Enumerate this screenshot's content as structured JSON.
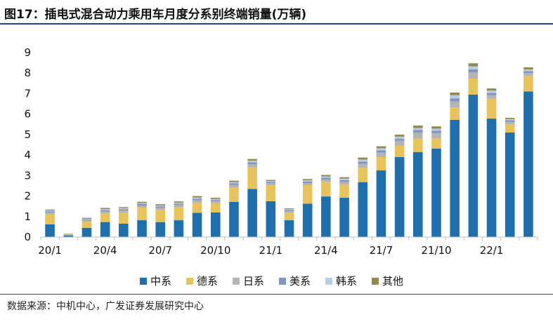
{
  "header": {
    "title": "图17：插电式混合动力乘用车月度分系别终端销量(万辆)"
  },
  "footer": {
    "source": "数据来源：中机中心，广发证券发展研究中心"
  },
  "colors": {
    "中系": "#1f6fad",
    "德系": "#e8c25a",
    "日系": "#b4b4b4",
    "美系": "#7f95c4",
    "韩系": "#b8cce4",
    "其他": "#938a52",
    "axis": "#bfbfbf",
    "title_rule": "#1e4a82"
  },
  "chart_data": {
    "type": "bar",
    "stacked": true,
    "categories": [
      "20/1",
      "20/2",
      "20/3",
      "20/4",
      "20/5",
      "20/6",
      "20/7",
      "20/8",
      "20/9",
      "20/10",
      "20/11",
      "20/12",
      "21/1",
      "21/2",
      "21/3",
      "21/4",
      "21/5",
      "21/6",
      "21/7",
      "21/8",
      "21/9",
      "21/10",
      "21/11",
      "21/12",
      "22/1",
      "22/2",
      "22/3"
    ],
    "xtick_labels": [
      "20/1",
      "20/4",
      "20/7",
      "20/10",
      "21/1",
      "21/4",
      "21/7",
      "21/10",
      "22/1"
    ],
    "xtick_indices": [
      0,
      3,
      6,
      9,
      12,
      15,
      18,
      21,
      24
    ],
    "ylim": [
      0,
      9
    ],
    "yticks": [
      0,
      1,
      2,
      3,
      4,
      5,
      6,
      7,
      8,
      9
    ],
    "grid": false,
    "legend_position": "bottom",
    "series": [
      {
        "name": "中系",
        "values": [
          0.62,
          0.08,
          0.45,
          0.73,
          0.65,
          0.82,
          0.73,
          0.82,
          1.18,
          1.2,
          1.72,
          2.35,
          1.75,
          0.82,
          1.63,
          1.98,
          1.92,
          2.68,
          3.25,
          3.9,
          4.15,
          4.32,
          5.72,
          6.95,
          5.78,
          5.1,
          7.1
        ]
      },
      {
        "name": "德系",
        "values": [
          0.48,
          0.04,
          0.3,
          0.42,
          0.55,
          0.62,
          0.6,
          0.65,
          0.5,
          0.45,
          0.7,
          1.05,
          0.78,
          0.38,
          0.9,
          0.7,
          0.65,
          0.7,
          0.65,
          0.55,
          0.65,
          0.5,
          0.6,
          0.78,
          0.95,
          0.4,
          0.75
        ]
      },
      {
        "name": "日系",
        "values": [
          0.1,
          0.02,
          0.08,
          0.1,
          0.1,
          0.1,
          0.1,
          0.1,
          0.12,
          0.1,
          0.12,
          0.15,
          0.1,
          0.07,
          0.1,
          0.12,
          0.12,
          0.2,
          0.22,
          0.25,
          0.3,
          0.25,
          0.3,
          0.3,
          0.2,
          0.12,
          0.15
        ]
      },
      {
        "name": "美系",
        "values": [
          0.05,
          0.01,
          0.04,
          0.06,
          0.06,
          0.07,
          0.06,
          0.06,
          0.07,
          0.06,
          0.08,
          0.1,
          0.06,
          0.05,
          0.08,
          0.09,
          0.09,
          0.1,
          0.11,
          0.1,
          0.12,
          0.12,
          0.15,
          0.15,
          0.1,
          0.08,
          0.1
        ]
      },
      {
        "name": "韩系",
        "values": [
          0.05,
          0.01,
          0.03,
          0.05,
          0.05,
          0.05,
          0.05,
          0.05,
          0.06,
          0.05,
          0.06,
          0.08,
          0.05,
          0.04,
          0.06,
          0.07,
          0.07,
          0.1,
          0.1,
          0.1,
          0.1,
          0.1,
          0.15,
          0.15,
          0.12,
          0.06,
          0.08
        ]
      },
      {
        "name": "其他",
        "values": [
          0.04,
          0.01,
          0.04,
          0.06,
          0.05,
          0.06,
          0.06,
          0.06,
          0.07,
          0.06,
          0.07,
          0.08,
          0.05,
          0.04,
          0.06,
          0.07,
          0.07,
          0.1,
          0.1,
          0.1,
          0.12,
          0.11,
          0.13,
          0.15,
          0.1,
          0.06,
          0.1
        ]
      }
    ]
  }
}
